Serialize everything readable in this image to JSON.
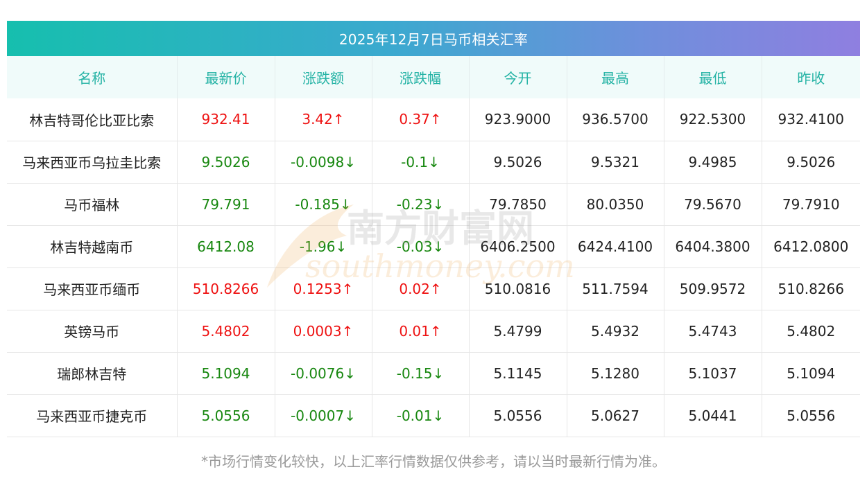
{
  "title": "2025年12月7日马币相关汇率",
  "columns": [
    "名称",
    "最新价",
    "涨跌额",
    "涨跌幅",
    "今开",
    "最高",
    "最低",
    "昨收"
  ],
  "rows": [
    {
      "name": "林吉特哥伦比亚比索",
      "latest": "932.41",
      "change": "3.42↑",
      "pct": "0.37↑",
      "open": "923.9000",
      "high": "936.5700",
      "low": "922.5300",
      "prev": "932.4100",
      "trend": "up"
    },
    {
      "name": "马来西亚币乌拉圭比索",
      "latest": "9.5026",
      "change": "-0.0098↓",
      "pct": "-0.1↓",
      "open": "9.5026",
      "high": "9.5321",
      "low": "9.4985",
      "prev": "9.5026",
      "trend": "down"
    },
    {
      "name": "马币福林",
      "latest": "79.791",
      "change": "-0.185↓",
      "pct": "-0.23↓",
      "open": "79.7850",
      "high": "80.0350",
      "low": "79.5670",
      "prev": "79.7910",
      "trend": "down"
    },
    {
      "name": "林吉特越南币",
      "latest": "6412.08",
      "change": "-1.96↓",
      "pct": "-0.03↓",
      "open": "6406.2500",
      "high": "6424.4100",
      "low": "6404.3800",
      "prev": "6412.0800",
      "trend": "down"
    },
    {
      "name": "马来西亚币缅币",
      "latest": "510.8266",
      "change": "0.1253↑",
      "pct": "0.02↑",
      "open": "510.0816",
      "high": "511.7594",
      "low": "509.9572",
      "prev": "510.8266",
      "trend": "up"
    },
    {
      "name": "英镑马币",
      "latest": "5.4802",
      "change": "0.0003↑",
      "pct": "0.01↑",
      "open": "5.4799",
      "high": "5.4932",
      "low": "5.4743",
      "prev": "5.4802",
      "trend": "up"
    },
    {
      "name": "瑞郎林吉特",
      "latest": "5.1094",
      "change": "-0.0076↓",
      "pct": "-0.15↓",
      "open": "5.1145",
      "high": "5.1280",
      "low": "5.1037",
      "prev": "5.1094",
      "trend": "down"
    },
    {
      "name": "马来西亚币捷克币",
      "latest": "5.0556",
      "change": "-0.0007↓",
      "pct": "-0.01↓",
      "open": "5.0556",
      "high": "5.0627",
      "low": "5.0441",
      "prev": "5.0556",
      "trend": "down"
    }
  ],
  "footer_note": "*市场行情变化较快，以上汇率行情数据仅供参考，请以当时最新行情为准。",
  "watermark": {
    "cn": "南方财富网",
    "en": "southmoney.com"
  },
  "colors": {
    "up": "#ee1111",
    "down": "#17870f",
    "header_text": "#25b3a5"
  }
}
